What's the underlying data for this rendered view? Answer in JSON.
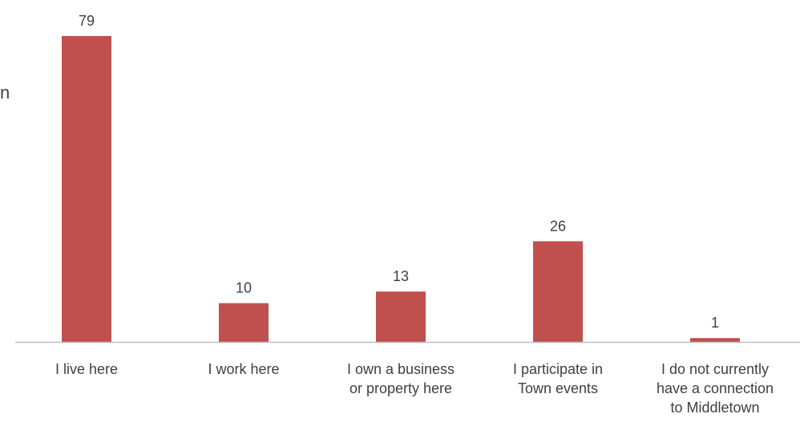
{
  "fragment": "n",
  "chart_data": {
    "type": "bar",
    "categories": [
      [
        "I live here"
      ],
      [
        "I work here"
      ],
      [
        "I own a business",
        "or property here"
      ],
      [
        "I participate in",
        "Town events"
      ],
      [
        "I do not currently",
        "have a connection",
        "to Middletown"
      ]
    ],
    "values": [
      79,
      10,
      13,
      26,
      1
    ],
    "title": "",
    "xlabel": "",
    "ylabel": "",
    "ylim": [
      0,
      80
    ],
    "grid": false,
    "legend": "none",
    "data_labels": true,
    "bar_color": "#C0504D",
    "axis_color": "#BFBFBF",
    "text_color": "#404040"
  }
}
